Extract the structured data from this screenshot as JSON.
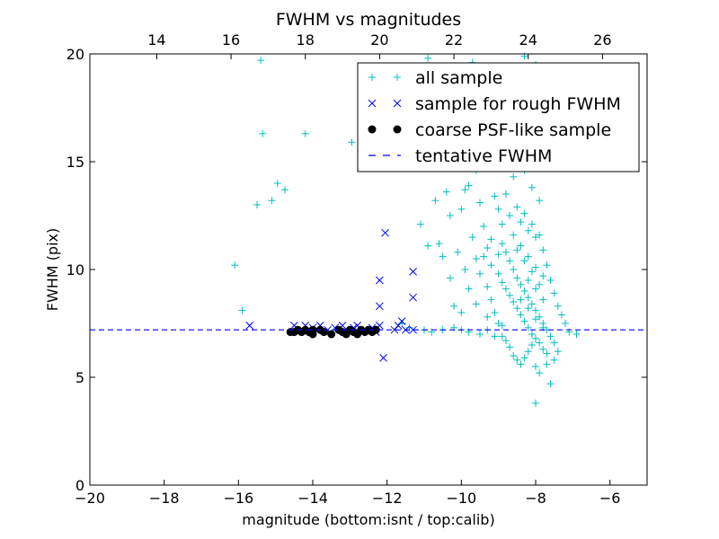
{
  "chart_data": {
    "type": "scatter",
    "title": "FWHM vs magnitudes",
    "xlabel": "magnitude (bottom:isnt / top:calib)",
    "ylabel": "FWHM (pix)",
    "xlim": [
      -20,
      -5
    ],
    "ylim": [
      0,
      20
    ],
    "top_xlim": [
      12.2,
      27.2
    ],
    "x_ticks": [
      -20,
      -18,
      -16,
      -14,
      -12,
      -10,
      -8,
      -6
    ],
    "x_tick_labels": [
      "−20",
      "−18",
      "−16",
      "−14",
      "−12",
      "−10",
      "−8",
      "−6"
    ],
    "y_ticks": [
      0,
      5,
      10,
      15,
      20
    ],
    "y_tick_labels": [
      "0",
      "5",
      "10",
      "15",
      "20"
    ],
    "top_x_ticks": [
      14,
      16,
      18,
      20,
      22,
      24,
      26
    ],
    "top_x_tick_labels": [
      "14",
      "16",
      "18",
      "20",
      "22",
      "24",
      "26"
    ],
    "grid": false,
    "legend_position": "top-right",
    "series": [
      {
        "name": "all sample",
        "marker": "+",
        "color": "#00bfbf",
        "points": [
          [
            -16.1,
            10.2
          ],
          [
            -15.9,
            8.1
          ],
          [
            -15.4,
            19.7
          ],
          [
            -15.35,
            16.3
          ],
          [
            -15.5,
            13.0
          ],
          [
            -14.95,
            14.0
          ],
          [
            -14.75,
            13.7
          ],
          [
            -15.1,
            13.2
          ],
          [
            -14.2,
            16.3
          ],
          [
            -12.95,
            15.9
          ],
          [
            -10.9,
            19.8
          ],
          [
            -9.7,
            19.6
          ],
          [
            -8.3,
            19.9
          ],
          [
            -8.0,
            19.5
          ],
          [
            -11.6,
            7.5
          ],
          [
            -11.4,
            7.3
          ],
          [
            -11.0,
            7.2
          ],
          [
            -10.8,
            7.1
          ],
          [
            -10.5,
            7.2
          ],
          [
            -10.2,
            7.3
          ],
          [
            -10.0,
            7.2
          ],
          [
            -9.8,
            7.1
          ],
          [
            -9.5,
            7.0
          ],
          [
            -9.3,
            7.2
          ],
          [
            -9.1,
            6.9
          ],
          [
            -11.1,
            12.1
          ],
          [
            -10.9,
            11.1
          ],
          [
            -10.6,
            11.2
          ],
          [
            -10.5,
            10.6
          ],
          [
            -10.3,
            9.6
          ],
          [
            -10.2,
            8.3
          ],
          [
            -10.0,
            8.0
          ],
          [
            -10.7,
            13.2
          ],
          [
            -10.4,
            13.6
          ],
          [
            -10.3,
            12.5
          ],
          [
            -10.0,
            12.8
          ],
          [
            -9.9,
            13.7
          ],
          [
            -9.8,
            13.9
          ],
          [
            -9.6,
            14.6
          ],
          [
            -9.5,
            13.1
          ],
          [
            -9.4,
            12.0
          ],
          [
            -9.3,
            11.0
          ],
          [
            -9.7,
            11.5
          ],
          [
            -9.6,
            10.5
          ],
          [
            -9.5,
            9.8
          ],
          [
            -9.3,
            9.2
          ],
          [
            -9.2,
            8.6
          ],
          [
            -9.1,
            8.0
          ],
          [
            -9.0,
            7.5
          ],
          [
            -8.9,
            6.9
          ],
          [
            -8.8,
            6.7
          ],
          [
            -8.7,
            6.4
          ],
          [
            -8.6,
            6.0
          ],
          [
            -8.5,
            5.8
          ],
          [
            -8.4,
            5.6
          ],
          [
            -8.3,
            5.9
          ],
          [
            -8.2,
            6.2
          ],
          [
            -8.1,
            6.5
          ],
          [
            -8.0,
            5.5
          ],
          [
            -7.9,
            5.2
          ],
          [
            -7.7,
            5.6
          ],
          [
            -7.5,
            5.8
          ],
          [
            -7.4,
            6.2
          ],
          [
            -7.6,
            4.7
          ],
          [
            -8.0,
            3.8
          ],
          [
            -9.4,
            14.9
          ],
          [
            -9.1,
            15.5
          ],
          [
            -8.9,
            16.0
          ],
          [
            -8.7,
            15.6
          ],
          [
            -8.5,
            15.8
          ],
          [
            -8.3,
            14.6
          ],
          [
            -8.1,
            13.8
          ],
          [
            -7.9,
            13.2
          ],
          [
            -8.6,
            14.3
          ],
          [
            -8.8,
            13.5
          ],
          [
            -9.0,
            12.8
          ],
          [
            -8.7,
            12.5
          ],
          [
            -8.5,
            12.9
          ],
          [
            -8.4,
            12.2
          ],
          [
            -8.2,
            11.8
          ],
          [
            -8.0,
            11.5
          ],
          [
            -7.8,
            10.9
          ],
          [
            -7.7,
            10.2
          ],
          [
            -7.6,
            9.5
          ],
          [
            -7.5,
            8.9
          ],
          [
            -7.4,
            8.3
          ],
          [
            -7.3,
            7.9
          ],
          [
            -7.2,
            7.5
          ],
          [
            -7.1,
            7.1
          ],
          [
            -6.9,
            7.0
          ],
          [
            -8.9,
            11.2
          ],
          [
            -8.8,
            10.8
          ],
          [
            -8.7,
            10.4
          ],
          [
            -8.6,
            10.0
          ],
          [
            -8.5,
            9.6
          ],
          [
            -8.4,
            9.3
          ],
          [
            -8.3,
            9.0
          ],
          [
            -8.2,
            8.7
          ],
          [
            -8.1,
            8.4
          ],
          [
            -8.0,
            8.1
          ],
          [
            -7.9,
            7.8
          ],
          [
            -7.8,
            7.5
          ],
          [
            -7.7,
            7.2
          ],
          [
            -7.6,
            6.9
          ],
          [
            -7.5,
            6.6
          ],
          [
            -9.2,
            10.2
          ],
          [
            -9.0,
            9.8
          ],
          [
            -8.9,
            9.4
          ],
          [
            -8.8,
            9.1
          ],
          [
            -8.7,
            8.8
          ],
          [
            -8.6,
            8.5
          ],
          [
            -8.5,
            8.2
          ],
          [
            -8.4,
            7.9
          ],
          [
            -8.3,
            7.6
          ],
          [
            -8.2,
            7.3
          ],
          [
            -8.1,
            7.0
          ],
          [
            -8.0,
            6.8
          ],
          [
            -7.9,
            6.6
          ],
          [
            -7.8,
            6.3
          ],
          [
            -7.7,
            6.1
          ],
          [
            -8.6,
            11.6
          ],
          [
            -8.4,
            11.1
          ],
          [
            -8.2,
            10.6
          ],
          [
            -8.0,
            10.1
          ],
          [
            -7.8,
            9.7
          ],
          [
            -8.3,
            12.6
          ],
          [
            -8.1,
            12.1
          ],
          [
            -7.9,
            11.6
          ],
          [
            -8.5,
            10.9
          ],
          [
            -8.3,
            10.4
          ],
          [
            -8.1,
            9.9
          ],
          [
            -7.9,
            9.3
          ],
          [
            -8.2,
            9.5
          ],
          [
            -8.0,
            9.1
          ],
          [
            -7.8,
            8.6
          ],
          [
            -8.4,
            8.6
          ],
          [
            -8.2,
            8.2
          ],
          [
            -8.0,
            7.7
          ],
          [
            -7.8,
            7.3
          ],
          [
            -8.9,
            7.4
          ],
          [
            -9.3,
            7.8
          ],
          [
            -9.6,
            8.4
          ],
          [
            -9.8,
            9.1
          ],
          [
            -9.9,
            10.0
          ],
          [
            -10.1,
            10.8
          ],
          [
            -9.1,
            13.4
          ],
          [
            -8.9,
            12.1
          ],
          [
            -9.2,
            11.4
          ],
          [
            -9.4,
            10.6
          ],
          [
            -9.0,
            10.7
          ]
        ]
      },
      {
        "name": "sample for rough FWHM",
        "marker": "x",
        "color": "#0000ff",
        "points": [
          [
            -15.7,
            7.4
          ],
          [
            -14.5,
            7.4
          ],
          [
            -14.3,
            7.2
          ],
          [
            -14.2,
            7.4
          ],
          [
            -14.0,
            7.3
          ],
          [
            -13.9,
            7.2
          ],
          [
            -13.8,
            7.4
          ],
          [
            -13.6,
            7.2
          ],
          [
            -13.4,
            7.3
          ],
          [
            -13.2,
            7.4
          ],
          [
            -13.1,
            7.1
          ],
          [
            -12.9,
            7.3
          ],
          [
            -12.8,
            7.4
          ],
          [
            -12.6,
            7.2
          ],
          [
            -12.4,
            7.3
          ],
          [
            -12.3,
            7.1
          ],
          [
            -12.2,
            7.4
          ],
          [
            -12.2,
            9.5
          ],
          [
            -12.2,
            8.3
          ],
          [
            -12.05,
            11.7
          ],
          [
            -12.1,
            5.9
          ],
          [
            -11.8,
            7.2
          ],
          [
            -11.7,
            7.4
          ],
          [
            -11.6,
            7.6
          ],
          [
            -11.5,
            7.2
          ],
          [
            -11.3,
            7.2
          ],
          [
            -11.3,
            8.7
          ],
          [
            -11.3,
            9.9
          ]
        ]
      },
      {
        "name": "coarse PSF-like sample",
        "marker": "o",
        "color": "#000000",
        "points": [
          [
            -14.6,
            7.1
          ],
          [
            -14.5,
            7.1
          ],
          [
            -14.4,
            7.2
          ],
          [
            -14.3,
            7.1
          ],
          [
            -14.2,
            7.2
          ],
          [
            -14.1,
            7.1
          ],
          [
            -14.0,
            7.0
          ],
          [
            -14.0,
            7.2
          ],
          [
            -13.8,
            7.2
          ],
          [
            -13.7,
            7.1
          ],
          [
            -13.5,
            7.0
          ],
          [
            -13.3,
            7.2
          ],
          [
            -13.2,
            7.1
          ],
          [
            -13.1,
            7.0
          ],
          [
            -13.0,
            7.2
          ],
          [
            -12.9,
            7.1
          ],
          [
            -12.8,
            7.0
          ],
          [
            -12.7,
            7.2
          ],
          [
            -12.6,
            7.1
          ],
          [
            -12.5,
            7.2
          ],
          [
            -12.4,
            7.1
          ],
          [
            -12.3,
            7.2
          ]
        ]
      },
      {
        "name": "tentative FWHM",
        "marker": "dashed-line",
        "color": "#0000ff",
        "y": 7.2
      }
    ]
  }
}
